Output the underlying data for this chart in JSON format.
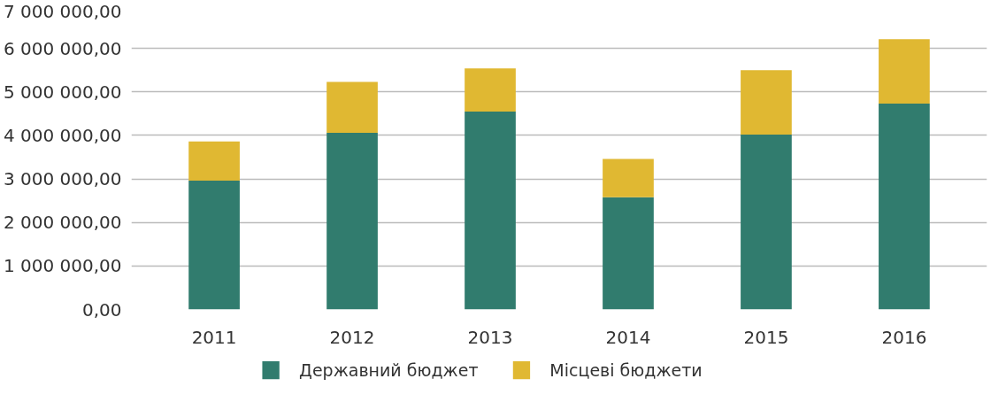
{
  "chart_data": {
    "type": "bar",
    "stacked": true,
    "categories": [
      "2011",
      "2012",
      "2013",
      "2014",
      "2015",
      "2016"
    ],
    "series": [
      {
        "name": "Державний бюджет",
        "color": "#317c6e",
        "values": [
          2960000,
          4060000,
          4550000,
          2580000,
          4020000,
          4730000
        ]
      },
      {
        "name": "Місцеві бюджети",
        "color": "#e0b832",
        "values": [
          900000,
          1170000,
          990000,
          880000,
          1480000,
          1480000
        ]
      }
    ],
    "ylim": [
      0,
      7000000
    ],
    "yticks": [
      {
        "value": 0,
        "label": "0,00"
      },
      {
        "value": 1000000,
        "label": "1 000 000,00"
      },
      {
        "value": 2000000,
        "label": "2 000 000,00"
      },
      {
        "value": 3000000,
        "label": "3 000 000,00"
      },
      {
        "value": 4000000,
        "label": "4 000 000,00"
      },
      {
        "value": 5000000,
        "label": "5 000 000,00"
      },
      {
        "value": 6000000,
        "label": "6 000 000,00"
      },
      {
        "value": 7000000,
        "label": "7 000 000,00"
      }
    ],
    "grid": "y",
    "legend": "bottom"
  }
}
